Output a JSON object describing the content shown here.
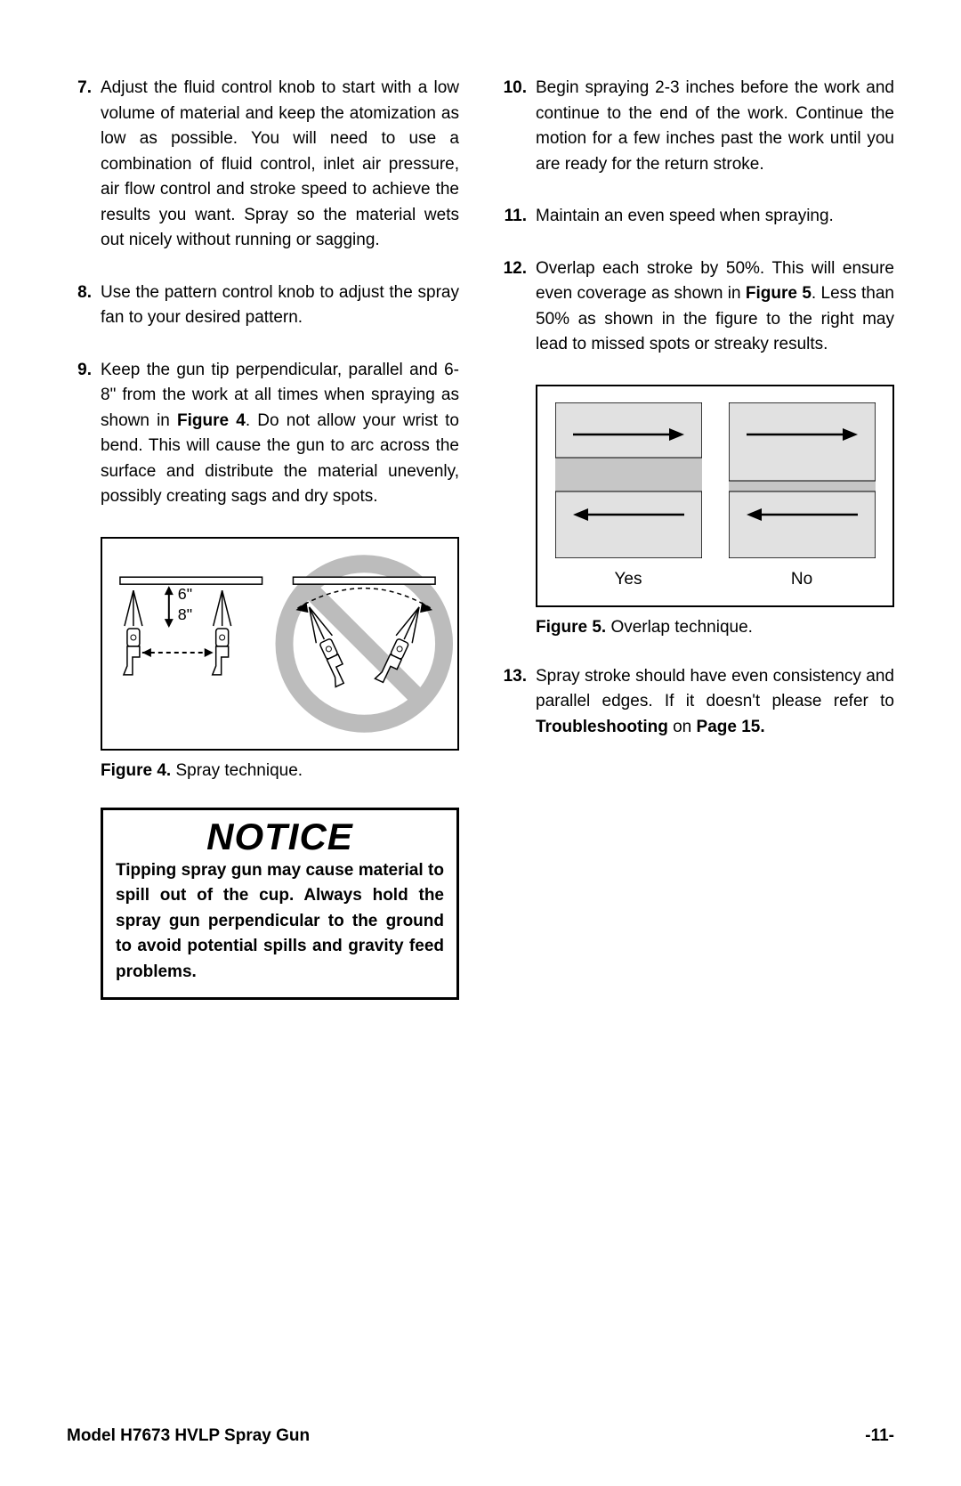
{
  "left_items": [
    {
      "num": "7.",
      "text": "Adjust the fluid control knob to start with a low volume of material and keep the atomization as low as possible. You will need to use a combination of fluid control, inlet air pressure, air flow control and stroke speed to achieve the results you want. Spray so the material wets out nicely without running or sagging."
    },
    {
      "num": "8.",
      "text": "Use the pattern control knob to adjust the spray fan to your desired pattern."
    },
    {
      "num": "9.",
      "html": "Keep the gun tip perpendicular, parallel and 6-8\" from the work at all times when spraying as shown in <span class=\"bold\">Figure 4</span>. Do not allow your wrist to bend. This will cause the gun to arc across the surface and distribute the material unevenly, possibly creating sags and dry spots."
    }
  ],
  "right_items": [
    {
      "num": "10.",
      "text": "Begin spraying 2-3 inches before the work and continue to the end of the work. Continue the motion for a few inches past the work until you are ready for the return stroke."
    },
    {
      "num": "11.",
      "text": "Maintain an even speed when spraying."
    },
    {
      "num": "12.",
      "html": "Overlap each stroke by 50%. This will ensure even coverage as shown in <span class=\"bold\">Figure 5</span>. Less than 50% as shown in the figure to the right may lead to missed spots or streaky results."
    }
  ],
  "right_item_13": {
    "num": "13.",
    "html": "Spray stroke should have even consistency and parallel edges. If it doesn't please refer to <span class=\"bold\">Troubleshooting</span> on <span class=\"bold\">Page 15.</span>"
  },
  "figure4": {
    "caption_label": "Figure 4.",
    "caption_text": " Spray technique.",
    "dist_labels": [
      "6\"",
      "8\""
    ]
  },
  "figure5": {
    "caption_label": "Figure 5.",
    "caption_text": " Overlap technique.",
    "yes_label": "Yes",
    "no_label": "No",
    "panel_bg": "#e1e1e1",
    "overlap_band": "#c6c6c6"
  },
  "notice": {
    "title": "NOTICE",
    "body": "Tipping spray gun may cause material to spill out of the cup. Always hold the spray gun perpendicular to the ground to avoid potential spills and gravity feed problems."
  },
  "footer": {
    "model": "Model H7673 HVLP Spray Gun",
    "page": "-11-"
  },
  "colors": {
    "prohibit_gray": "#bcbcbc"
  }
}
